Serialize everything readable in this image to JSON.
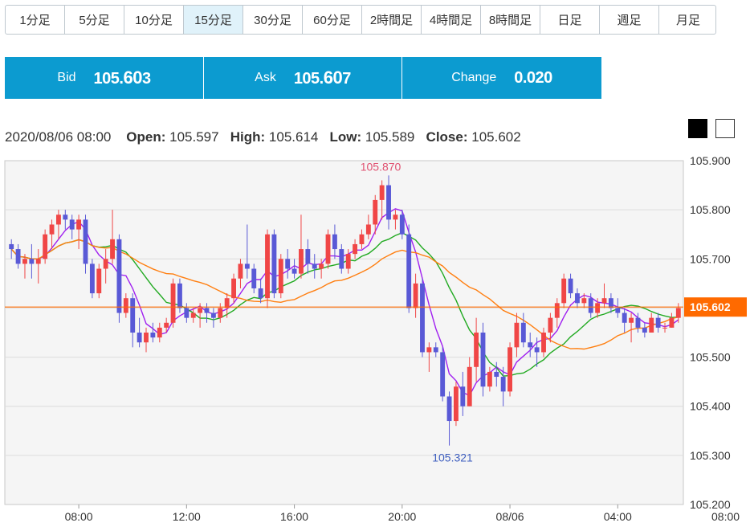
{
  "timeframes": [
    {
      "label": "1分足",
      "active": false
    },
    {
      "label": "5分足",
      "active": false
    },
    {
      "label": "10分足",
      "active": false
    },
    {
      "label": "15分足",
      "active": true
    },
    {
      "label": "30分足",
      "active": false
    },
    {
      "label": "60分足",
      "active": false
    },
    {
      "label": "2時間足",
      "active": false
    },
    {
      "label": "4時間足",
      "active": false
    },
    {
      "label": "8時間足",
      "active": false
    },
    {
      "label": "日足",
      "active": false
    },
    {
      "label": "週足",
      "active": false
    },
    {
      "label": "月足",
      "active": false
    }
  ],
  "quotes": {
    "bid": {
      "label": "Bid",
      "main": "105.60",
      "pip": "3"
    },
    "ask": {
      "label": "Ask",
      "main": "105.60",
      "pip": "7"
    },
    "change": {
      "label": "Change",
      "value": "0.020"
    }
  },
  "ohlc": {
    "datetime": "2020/08/06 08:00",
    "open_label": "Open:",
    "open": "105.597",
    "high_label": "High:",
    "high": "105.614",
    "low_label": "Low:",
    "low": "105.589",
    "close_label": "Close:",
    "close": "105.602"
  },
  "colors": {
    "accent": "#0c9bd0",
    "up": "#f04646",
    "down": "#5959d6",
    "ma_short": "#a020f0",
    "ma_mid": "#22aa22",
    "ma_long": "#ff7f11",
    "price_line": "#ff6a00"
  },
  "chart_data": {
    "type": "candlestick",
    "ylim": [
      105.2,
      105.9
    ],
    "yticks": [
      "105.200",
      "105.300",
      "105.400",
      "105.500",
      "105.600",
      "105.700",
      "105.800",
      "105.900"
    ],
    "xtick_labels": [
      "08:00",
      "12:00",
      "16:00",
      "20:00",
      "08/06",
      "04:00",
      "08:00"
    ],
    "xtick_index": [
      10,
      26,
      42,
      58,
      74,
      90,
      106
    ],
    "current_price": "105.602",
    "max_label": "105.870",
    "min_label": "105.321",
    "candles": [
      [
        105.73,
        105.74,
        105.7,
        105.72
      ],
      [
        105.72,
        105.73,
        105.68,
        105.69
      ],
      [
        105.69,
        105.71,
        105.66,
        105.7
      ],
      [
        105.7,
        105.73,
        105.66,
        105.69
      ],
      [
        105.69,
        105.72,
        105.65,
        105.7
      ],
      [
        105.7,
        105.76,
        105.69,
        105.75
      ],
      [
        105.75,
        105.78,
        105.72,
        105.77
      ],
      [
        105.77,
        105.8,
        105.74,
        105.79
      ],
      [
        105.79,
        105.8,
        105.76,
        105.78
      ],
      [
        105.78,
        105.79,
        105.74,
        105.76
      ],
      [
        105.76,
        105.79,
        105.72,
        105.78
      ],
      [
        105.78,
        105.79,
        105.67,
        105.69
      ],
      [
        105.69,
        105.7,
        105.62,
        105.63
      ],
      [
        105.63,
        105.69,
        105.62,
        105.68
      ],
      [
        105.68,
        105.72,
        105.65,
        105.7
      ],
      [
        105.7,
        105.8,
        105.69,
        105.74
      ],
      [
        105.74,
        105.75,
        105.57,
        105.59
      ],
      [
        105.59,
        105.63,
        105.58,
        105.62
      ],
      [
        105.62,
        105.63,
        105.52,
        105.55
      ],
      [
        105.55,
        105.58,
        105.52,
        105.53
      ],
      [
        105.53,
        105.56,
        105.51,
        105.55
      ],
      [
        105.55,
        105.57,
        105.53,
        105.54
      ],
      [
        105.54,
        105.57,
        105.53,
        105.56
      ],
      [
        105.56,
        105.58,
        105.55,
        105.57
      ],
      [
        105.57,
        105.66,
        105.56,
        105.65
      ],
      [
        105.65,
        105.66,
        105.59,
        105.6
      ],
      [
        105.6,
        105.61,
        105.57,
        105.58
      ],
      [
        105.58,
        105.6,
        105.57,
        105.59
      ],
      [
        105.59,
        105.61,
        105.56,
        105.6
      ],
      [
        105.6,
        105.61,
        105.57,
        105.59
      ],
      [
        105.59,
        105.6,
        105.56,
        105.58
      ],
      [
        105.58,
        105.61,
        105.57,
        105.6
      ],
      [
        105.6,
        105.63,
        105.58,
        105.62
      ],
      [
        105.62,
        105.67,
        105.61,
        105.66
      ],
      [
        105.66,
        105.7,
        105.64,
        105.69
      ],
      [
        105.69,
        105.77,
        105.66,
        105.68
      ],
      [
        105.68,
        105.69,
        105.63,
        105.64
      ],
      [
        105.64,
        105.66,
        105.61,
        105.62
      ],
      [
        105.62,
        105.76,
        105.6,
        105.75
      ],
      [
        105.75,
        105.76,
        105.62,
        105.63
      ],
      [
        105.63,
        105.71,
        105.62,
        105.7
      ],
      [
        105.7,
        105.72,
        105.66,
        105.68
      ],
      [
        105.68,
        105.7,
        105.66,
        105.67
      ],
      [
        105.67,
        105.79,
        105.66,
        105.72
      ],
      [
        105.72,
        105.74,
        105.67,
        105.69
      ],
      [
        105.69,
        105.71,
        105.66,
        105.68
      ],
      [
        105.68,
        105.7,
        105.66,
        105.69
      ],
      [
        105.69,
        105.76,
        105.68,
        105.75
      ],
      [
        105.75,
        105.77,
        105.7,
        105.72
      ],
      [
        105.72,
        105.73,
        105.67,
        105.68
      ],
      [
        105.68,
        105.72,
        105.67,
        105.71
      ],
      [
        105.71,
        105.74,
        105.7,
        105.73
      ],
      [
        105.73,
        105.76,
        105.72,
        105.75
      ],
      [
        105.75,
        105.79,
        105.74,
        105.77
      ],
      [
        105.77,
        105.83,
        105.75,
        105.82
      ],
      [
        105.82,
        105.86,
        105.78,
        105.85
      ],
      [
        105.85,
        105.87,
        105.76,
        105.78
      ],
      [
        105.78,
        105.8,
        105.76,
        105.79
      ],
      [
        105.79,
        105.8,
        105.74,
        105.75
      ],
      [
        105.75,
        105.77,
        105.59,
        105.6
      ],
      [
        105.6,
        105.67,
        105.58,
        105.65
      ],
      [
        105.65,
        105.66,
        105.5,
        105.51
      ],
      [
        105.51,
        105.53,
        105.47,
        105.52
      ],
      [
        105.52,
        105.53,
        105.5,
        105.51
      ],
      [
        105.51,
        105.52,
        105.41,
        105.42
      ],
      [
        105.42,
        105.43,
        105.32,
        105.37
      ],
      [
        105.37,
        105.45,
        105.36,
        105.44
      ],
      [
        105.44,
        105.47,
        105.38,
        105.4
      ],
      [
        105.4,
        105.5,
        105.4,
        105.48
      ],
      [
        105.48,
        105.58,
        105.45,
        105.55
      ],
      [
        105.55,
        105.57,
        105.42,
        105.44
      ],
      [
        105.44,
        105.48,
        105.43,
        105.47
      ],
      [
        105.47,
        105.49,
        105.44,
        105.46
      ],
      [
        105.46,
        105.48,
        105.4,
        105.43
      ],
      [
        105.43,
        105.53,
        105.42,
        105.52
      ],
      [
        105.52,
        105.59,
        105.5,
        105.57
      ],
      [
        105.57,
        105.59,
        105.52,
        105.53
      ],
      [
        105.53,
        105.55,
        105.5,
        105.52
      ],
      [
        105.52,
        105.54,
        105.48,
        105.51
      ],
      [
        105.51,
        105.56,
        105.5,
        105.55
      ],
      [
        105.55,
        105.59,
        105.53,
        105.58
      ],
      [
        105.58,
        105.62,
        105.56,
        105.61
      ],
      [
        105.61,
        105.67,
        105.6,
        105.66
      ],
      [
        105.66,
        105.67,
        105.62,
        105.63
      ],
      [
        105.63,
        105.64,
        105.6,
        105.61
      ],
      [
        105.61,
        105.63,
        105.6,
        105.62
      ],
      [
        105.62,
        105.63,
        105.58,
        105.59
      ],
      [
        105.59,
        105.62,
        105.58,
        105.61
      ],
      [
        105.61,
        105.65,
        105.6,
        105.62
      ],
      [
        105.62,
        105.63,
        105.59,
        105.6
      ],
      [
        105.6,
        105.62,
        105.58,
        105.59
      ],
      [
        105.59,
        105.6,
        105.55,
        105.57
      ],
      [
        105.57,
        105.59,
        105.53,
        105.58
      ],
      [
        105.58,
        105.59,
        105.55,
        105.56
      ],
      [
        105.56,
        105.57,
        105.54,
        105.55
      ],
      [
        105.55,
        105.59,
        105.55,
        105.58
      ],
      [
        105.58,
        105.59,
        105.55,
        105.56
      ],
      [
        105.56,
        105.57,
        105.55,
        105.56
      ],
      [
        105.56,
        105.59,
        105.56,
        105.58
      ],
      [
        105.58,
        105.61,
        105.57,
        105.6
      ]
    ]
  }
}
